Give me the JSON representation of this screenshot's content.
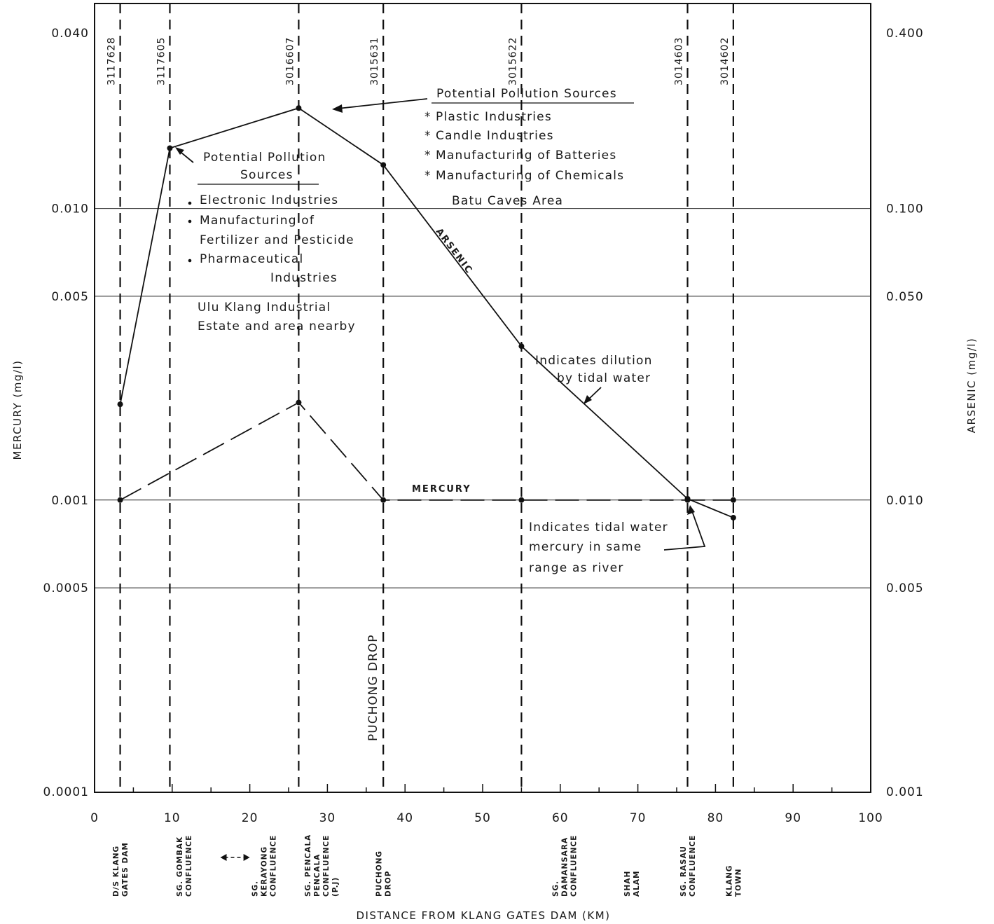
{
  "chart_data": {
    "type": "line",
    "xlabel": "DISTANCE FROM KLANG GATES DAM (KM)",
    "ylabel_left": "MERCURY (mg/l)",
    "ylabel_right": "ARSENIC (mg/l)",
    "xlim": [
      0,
      100
    ],
    "y_scale": "log",
    "ylim_left": [
      0.0001,
      0.04
    ],
    "ylim_right": [
      0.001,
      0.4
    ],
    "x_ticks": [
      "0",
      "10",
      "20",
      "30",
      "40",
      "50",
      "60",
      "70",
      "80",
      "90",
      "100"
    ],
    "y_ticks_left": [
      "0.040",
      "0.010",
      "0.005",
      "0.001",
      "0.0005",
      "0.0001"
    ],
    "y_ticks_right": [
      "0.400",
      "0.100",
      "0.050",
      "0.010",
      "0.005",
      "0.001"
    ],
    "grid": true,
    "series": [
      {
        "name": "ARSENIC",
        "axis": "right",
        "x": [
          3.3,
          9.7,
          26.3,
          37.2,
          55.0,
          76.4,
          82.3
        ],
        "y": [
          0.0213,
          0.161,
          0.221,
          0.141,
          0.0337,
          0.0101,
          0.0087
        ]
      },
      {
        "name": "MERCURY",
        "axis": "left",
        "x": [
          3.3,
          26.3,
          37.2,
          55.0,
          76.4,
          82.3
        ],
        "y": [
          0.001,
          0.00216,
          0.001,
          0.001,
          0.001,
          0.001
        ]
      }
    ],
    "stations": [
      {
        "id": "3117628",
        "x": 3.3
      },
      {
        "id": "3117605",
        "x": 9.7
      },
      {
        "id": "3016607",
        "x": 26.3
      },
      {
        "id": "3015631",
        "x": 37.2
      },
      {
        "id": "3015622",
        "x": 55.0
      },
      {
        "id": "3014603",
        "x": 76.4
      },
      {
        "id": "3014602",
        "x": 82.3
      }
    ],
    "locations": [
      {
        "lines": [
          "D/S KLANG",
          "GATES DAM"
        ],
        "x": 3.3
      },
      {
        "lines": [
          "SG. GOMBAK",
          "CONFLUENCE"
        ],
        "x": 11.5
      },
      {
        "lines": [
          "SG.",
          "KERAYONG",
          "CONFLUENCE"
        ],
        "x": 21.8
      },
      {
        "lines": [
          "SG. PENCALA",
          "PENCALA",
          "CONFLUENCE",
          "(P.J)"
        ],
        "x": 29.2
      },
      {
        "lines": [
          "PUCHONG",
          "DROP"
        ],
        "x": 37.2
      },
      {
        "lines": [
          "SG.",
          "DAMANSARA",
          "CONFLUENCE"
        ],
        "x": 60.5
      },
      {
        "lines": [
          "SHAH",
          "ALAM"
        ],
        "x": 69.2
      },
      {
        "lines": [
          "SG. RASAU",
          "CONFLUENCE"
        ],
        "x": 76.4
      },
      {
        "lines": [
          "KLANG",
          "TOWN"
        ],
        "x": 82.3
      }
    ],
    "annotations": {
      "puchong_vertical": "PUCHONG  DROP",
      "sources_1": {
        "title": [
          "Potential Pollution",
          "Sources"
        ],
        "items": [
          "Electronic Industries",
          "Manufacturing of",
          "Fertilizer and Pesticide",
          "Pharmaceutical",
          "Industries"
        ],
        "area": [
          "Ulu Klang Industrial",
          "Estate and area nearby"
        ]
      },
      "sources_2": {
        "title": "Potential Pollution Sources",
        "items": [
          "Plastic Industries",
          "Candle Industries",
          "Manufacturing of Batteries",
          "Manufacturing of Chemicals"
        ],
        "area": "Batu Caves Area"
      },
      "dilution": [
        "Indicates dilution",
        "by tidal water"
      ],
      "tidal": [
        "Indicates tidal water",
        "mercury in same",
        "range as river"
      ]
    }
  }
}
